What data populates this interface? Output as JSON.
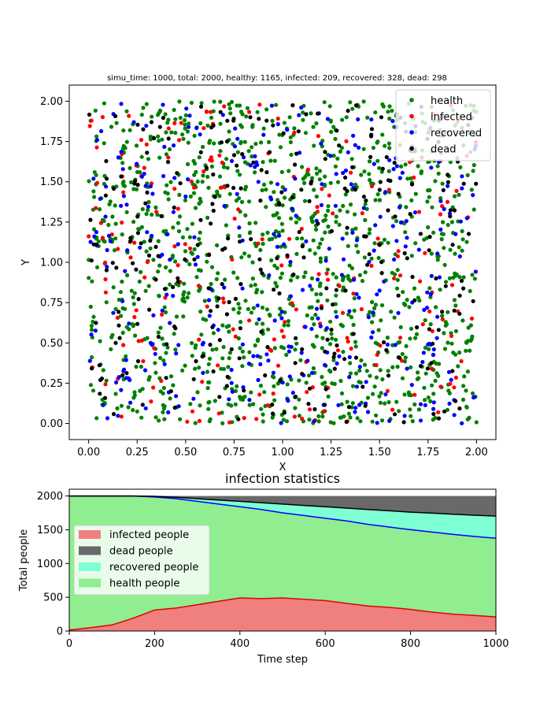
{
  "chart_data": [
    {
      "type": "scatter",
      "title": "simu_time: 1000, total: 2000, healthy: 1165, infected: 209, recovered: 328, dead: 298",
      "xlabel": "X",
      "ylabel": "Y",
      "xlim": [
        -0.1,
        2.1
      ],
      "ylim": [
        -0.1,
        2.1
      ],
      "x_ticks": [
        "0.00",
        "0.25",
        "0.50",
        "0.75",
        "1.00",
        "1.25",
        "1.50",
        "1.75",
        "2.00"
      ],
      "y_ticks": [
        "0.00",
        "0.25",
        "0.50",
        "0.75",
        "1.00",
        "1.25",
        "1.50",
        "1.75",
        "2.00"
      ],
      "legend_position": "top-right",
      "series": [
        {
          "name": "health",
          "color": "#008000",
          "count": 1165
        },
        {
          "name": "infected",
          "color": "#ff0000",
          "count": 209
        },
        {
          "name": "recovered",
          "color": "#0000ff",
          "count": 328
        },
        {
          "name": "dead",
          "color": "#000000",
          "count": 298
        }
      ],
      "seed": 12345
    },
    {
      "type": "area",
      "title": "infection statistics",
      "xlabel": "Time step",
      "ylabel": "Total people",
      "xlim": [
        0,
        1000
      ],
      "ylim": [
        0,
        2100
      ],
      "x_ticks": [
        "0",
        "200",
        "400",
        "600",
        "800",
        "1000"
      ],
      "y_ticks": [
        "0",
        "500",
        "1000",
        "1500",
        "2000"
      ],
      "legend_position": "center-left",
      "x": [
        0,
        50,
        100,
        150,
        200,
        250,
        300,
        350,
        400,
        450,
        500,
        550,
        600,
        650,
        700,
        750,
        800,
        850,
        900,
        950,
        1000
      ],
      "series": [
        {
          "name": "infected people",
          "color": "#f08080",
          "line_color": "#e00000",
          "values": [
            15,
            50,
            90,
            190,
            310,
            340,
            390,
            440,
            490,
            480,
            490,
            470,
            450,
            410,
            370,
            350,
            320,
            280,
            250,
            230,
            209
          ]
        },
        {
          "name": "dead people",
          "color": "#696969",
          "line_color": "#000000",
          "values": [
            0,
            0,
            0,
            0,
            5,
            20,
            40,
            60,
            80,
            100,
            120,
            140,
            160,
            180,
            200,
            220,
            240,
            255,
            270,
            285,
            298
          ]
        },
        {
          "name": "recovered people",
          "color": "#7fffd4",
          "line_color": "#0000ff",
          "values": [
            0,
            0,
            0,
            0,
            10,
            20,
            40,
            60,
            80,
            100,
            130,
            150,
            170,
            190,
            220,
            240,
            260,
            280,
            300,
            315,
            328
          ]
        },
        {
          "name": "health people",
          "color": "#90ee90",
          "values": [
            1985,
            1950,
            1910,
            1810,
            1675,
            1620,
            1530,
            1440,
            1350,
            1320,
            1260,
            1240,
            1220,
            1220,
            1210,
            1190,
            1180,
            1185,
            1180,
            1170,
            1165
          ]
        }
      ]
    }
  ]
}
